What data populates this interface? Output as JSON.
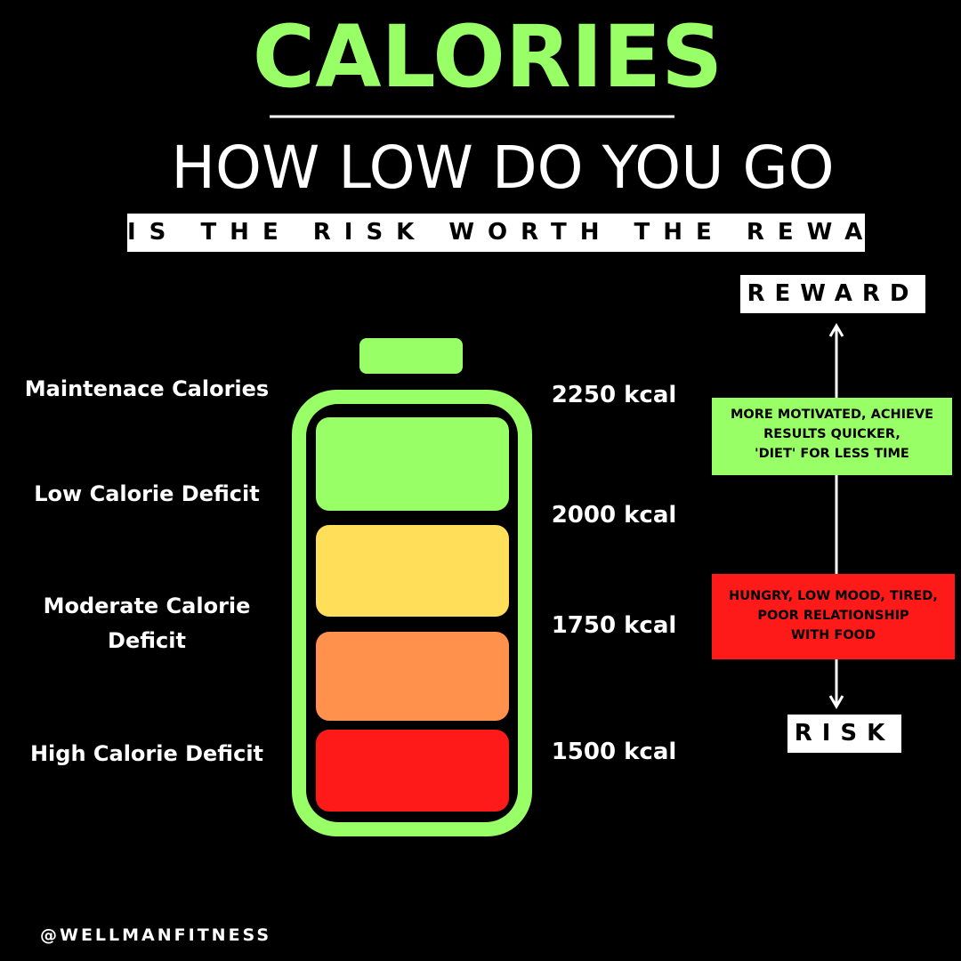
{
  "header": {
    "title": "CALORIES",
    "subtitle": "HOW LOW DO YOU GO",
    "tagline": "IS THE RISK WORTH THE REWARD"
  },
  "levels": [
    {
      "label": [
        "Maintenace Calories"
      ],
      "calories": "2250 kcal"
    },
    {
      "label": [
        "Low Calorie Deficit"
      ],
      "calories": "2000 kcal"
    },
    {
      "label": [
        "Moderate Calorie",
        "Deficit"
      ],
      "calories": "1750 kcal"
    },
    {
      "label": [
        "High Calorie Deficit"
      ],
      "calories": "1500 kcal"
    }
  ],
  "scale": {
    "top": "REWARD",
    "bottom": "RISK",
    "reward_note": [
      "MORE MOTIVATED, ACHIEVE",
      "RESULTS QUICKER,",
      "'DIET' FOR LESS TIME"
    ],
    "risk_note": [
      "HUNGRY, LOW MOOD, TIRED,",
      "POOR RELATIONSHIP",
      "WITH FOOD"
    ]
  },
  "footer": "@WELLMANFITNESS"
}
